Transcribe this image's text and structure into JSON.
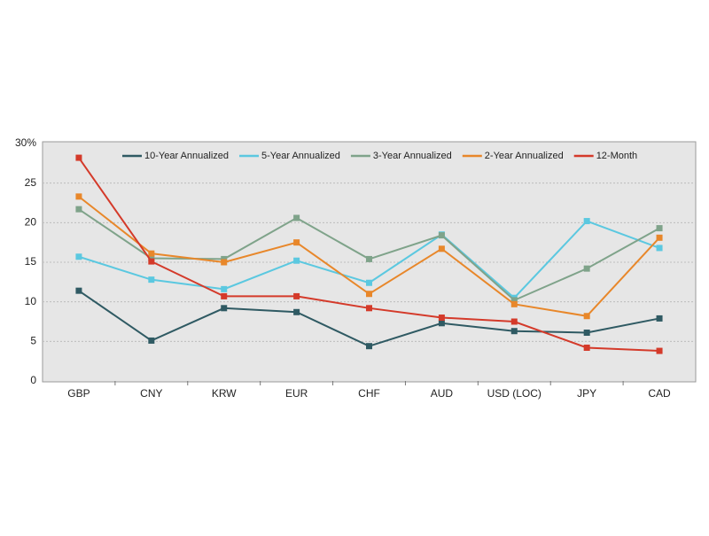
{
  "chart_data": {
    "type": "line",
    "categories": [
      "GBP",
      "CNY",
      "KRW",
      "EUR",
      "CHF",
      "AUD",
      "USD (LOC)",
      "JPY",
      "CAD"
    ],
    "series": [
      {
        "name": "10-Year Annualized",
        "color": "#2f5a63",
        "values": [
          11.4,
          5.1,
          9.2,
          8.7,
          4.4,
          7.3,
          6.3,
          6.1,
          7.9
        ]
      },
      {
        "name": "5-Year Annualized",
        "color": "#5bc8e0",
        "values": [
          15.7,
          12.8,
          11.6,
          15.2,
          12.4,
          18.5,
          10.5,
          20.2,
          16.8
        ]
      },
      {
        "name": "3-Year Annualized",
        "color": "#7fa38a",
        "values": [
          21.7,
          15.5,
          15.4,
          20.6,
          15.4,
          18.4,
          10.2,
          14.2,
          19.3
        ]
      },
      {
        "name": "2-Year Annualized",
        "color": "#e8872a",
        "values": [
          23.3,
          16.1,
          15.0,
          17.5,
          11.0,
          16.7,
          9.7,
          8.2,
          18.1
        ]
      },
      {
        "name": "12-Month",
        "color": "#d43a2a",
        "values": [
          28.2,
          15.1,
          10.7,
          10.7,
          9.2,
          8.0,
          7.5,
          4.2,
          3.8
        ]
      }
    ],
    "ylim": [
      0,
      30
    ],
    "yticks": [
      0,
      5,
      10,
      15,
      20,
      25,
      {
        "value": 30,
        "label": "30%"
      }
    ],
    "grid": true,
    "legend": "top"
  }
}
